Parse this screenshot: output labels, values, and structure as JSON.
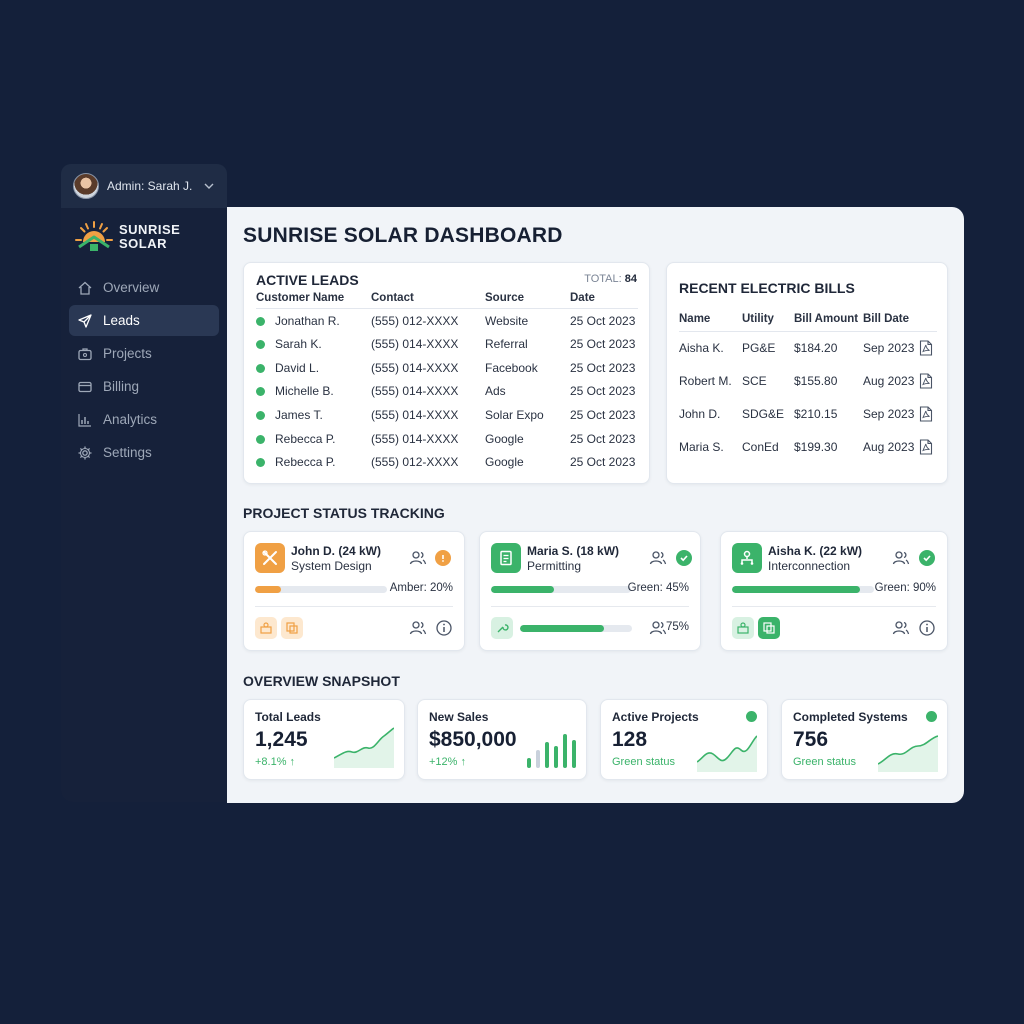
{
  "admin": {
    "label": "Admin: Sarah J."
  },
  "brand": {
    "line1": "SUNRISE",
    "line2": "SOLAR"
  },
  "nav": [
    {
      "label": "Overview",
      "icon": "home-icon",
      "active": false
    },
    {
      "label": "Leads",
      "icon": "send-icon",
      "active": true
    },
    {
      "label": "Projects",
      "icon": "briefcase-icon",
      "active": false
    },
    {
      "label": "Billing",
      "icon": "credit-card-icon",
      "active": false
    },
    {
      "label": "Analytics",
      "icon": "bar-chart-icon",
      "active": false
    },
    {
      "label": "Settings",
      "icon": "gear-icon",
      "active": false
    }
  ],
  "page": {
    "title": "SUNRISE SOLAR DASHBOARD"
  },
  "leads": {
    "title": "ACTIVE LEADS",
    "total_label": "TOTAL:",
    "total_value": "84",
    "columns": [
      "Customer Name",
      "Contact",
      "Source",
      "Date"
    ],
    "rows": [
      [
        "Jonathan R.",
        "(555) 012-XXXX",
        "Website",
        "25 Oct 2023"
      ],
      [
        "Sarah K.",
        "(555) 014-XXXX",
        "Referral",
        "25 Oct 2023"
      ],
      [
        "David L.",
        "(555) 014-XXXX",
        "Facebook",
        "25 Oct 2023"
      ],
      [
        "Michelle B.",
        "(555) 014-XXXX",
        "Ads",
        "25 Oct 2023"
      ],
      [
        "James T.",
        "(555) 014-XXXX",
        "Solar Expo",
        "25 Oct 2023"
      ],
      [
        "Rebecca P.",
        "(555) 014-XXXX",
        "Google",
        "25 Oct 2023"
      ],
      [
        "Rebecca P.",
        "(555) 012-XXXX",
        "Google",
        "25 Oct 2023"
      ]
    ]
  },
  "bills": {
    "title": "RECENT ELECTRIC BILLS",
    "columns": [
      "Name",
      "Utility",
      "Bill Amount",
      "Bill Date"
    ],
    "rows": [
      [
        "Aisha K.",
        "PG&E",
        "$184.20",
        "Sep 2023"
      ],
      [
        "Robert M.",
        "SCE",
        "$155.80",
        "Aug 2023"
      ],
      [
        "John D.",
        "SDG&E",
        "$210.15",
        "Sep 2023"
      ],
      [
        "Maria S.",
        "ConEd",
        "$199.30",
        "Aug 2023"
      ]
    ]
  },
  "projects": {
    "title": "PROJECT STATUS TRACKING",
    "items": [
      {
        "name": "John D. (24 kW)",
        "stage": "System Design",
        "status_label": "Amber: 20%",
        "progress": 0.2,
        "color": "#f0a044",
        "icon": "tools-icon",
        "secondary_progress": null,
        "secondary_label": ""
      },
      {
        "name": "Maria S. (18 kW)",
        "stage": "Permitting",
        "status_label": "Green: 45%",
        "progress": 0.45,
        "color": "#3bb36a",
        "icon": "document-icon",
        "secondary_progress": 0.75,
        "secondary_label": "75%"
      },
      {
        "name": "Aisha K. (22 kW)",
        "stage": "Interconnection",
        "status_label": "Green: 90%",
        "progress": 0.9,
        "color": "#3bb36a",
        "icon": "network-icon",
        "secondary_progress": null,
        "secondary_label": ""
      }
    ]
  },
  "overview": {
    "title": "OVERVIEW SNAPSHOT",
    "kpis": [
      {
        "label": "Total Leads",
        "value": "1,245",
        "sub": "+8.1% ↑"
      },
      {
        "label": "New Sales",
        "value": "$850,000",
        "sub": "+12% ↑"
      },
      {
        "label": "Active Projects",
        "value": "128",
        "sub": "Green status"
      },
      {
        "label": "Completed Systems",
        "value": "756",
        "sub": "Green status"
      }
    ]
  },
  "colors": {
    "accent_green": "#3bb36a",
    "accent_amber": "#f0a044",
    "sidebar_bg": "#16213a",
    "page_bg": "#14203a"
  }
}
